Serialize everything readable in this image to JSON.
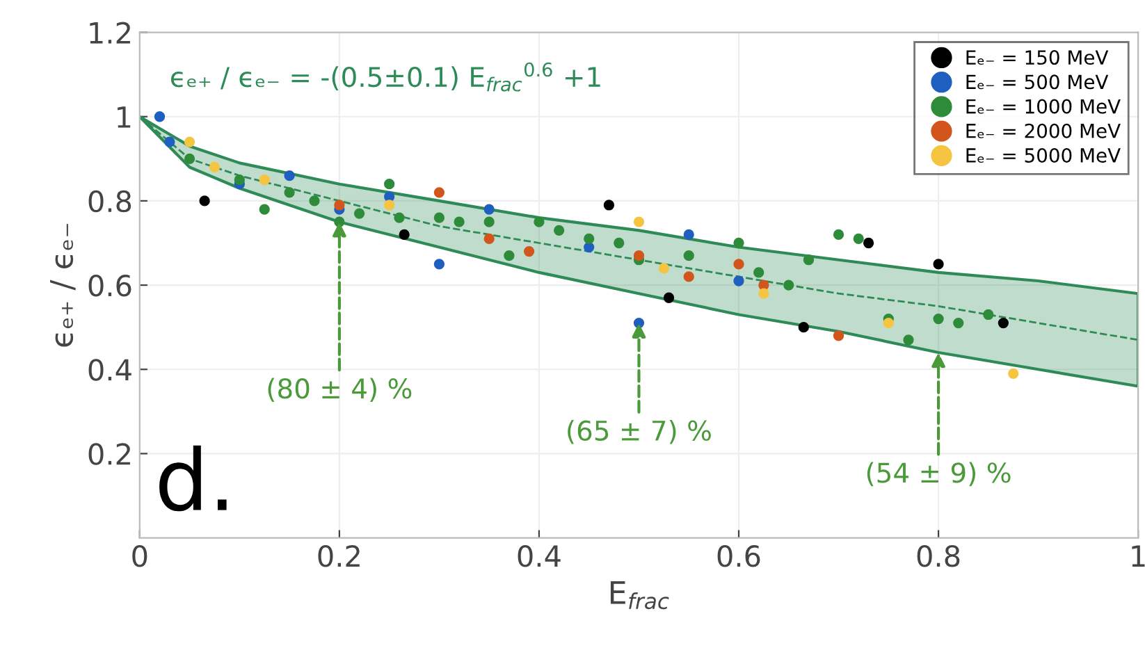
{
  "chart_data": {
    "type": "scatter",
    "xlabel": "E$_{frac}$",
    "ylabel": "ϵₑ₊ / ϵₑ₋",
    "xlim": [
      0,
      1
    ],
    "ylim": [
      0,
      1.2
    ],
    "xticks": [
      0,
      0.2,
      0.4,
      0.6,
      0.8,
      1
    ],
    "yticks": [
      {
        "value": 0.2,
        "label": "0.2"
      },
      0.4,
      0.6,
      0.8,
      1,
      1.2
    ],
    "grid": true,
    "legend": "top right",
    "series": [
      {
        "type": "line",
        "color": "#2e8b57",
        "line_style": "dashed",
        "x": [
          0,
          0.05,
          0.1,
          0.2,
          0.3,
          0.4,
          0.5,
          0.6,
          0.7,
          0.8,
          0.9,
          1
        ],
        "values": [
          1,
          0.9,
          0.86,
          0.8,
          0.74,
          0.7,
          0.66,
          0.62,
          0.58,
          0.55,
          0.51,
          0.47
        ],
        "upper": [
          1,
          0.93,
          0.89,
          0.84,
          0.8,
          0.76,
          0.73,
          0.69,
          0.66,
          0.63,
          0.61,
          0.58
        ],
        "lower": [
          1,
          0.88,
          0.83,
          0.75,
          0.69,
          0.63,
          0.58,
          0.53,
          0.49,
          0.44,
          0.4,
          0.36
        ]
      },
      {
        "name": "Eₑ₋ = 150 MeV",
        "marker": "circle",
        "color": "#000000",
        "x": [
          0.065,
          0.265,
          0.47,
          0.53,
          0.665,
          0.73,
          0.8,
          0.865
        ],
        "values": [
          0.8,
          0.72,
          0.79,
          0.57,
          0.5,
          0.7,
          0.65,
          0.51
        ]
      },
      {
        "name": "Eₑ₋ = 500 MeV",
        "marker": "circle",
        "color": "#1f5fbf",
        "x": [
          0.02,
          0.03,
          0.1,
          0.15,
          0.2,
          0.25,
          0.3,
          0.35,
          0.45,
          0.5,
          0.55,
          0.6
        ],
        "values": [
          1.0,
          0.94,
          0.84,
          0.86,
          0.78,
          0.81,
          0.65,
          0.78,
          0.69,
          0.51,
          0.72,
          0.61
        ]
      },
      {
        "name": "Eₑ₋ = 1000 MeV",
        "marker": "circle",
        "color": "#2e8b3a",
        "x": [
          0.05,
          0.1,
          0.125,
          0.15,
          0.175,
          0.2,
          0.22,
          0.25,
          0.26,
          0.3,
          0.32,
          0.35,
          0.37,
          0.4,
          0.42,
          0.45,
          0.48,
          0.5,
          0.55,
          0.6,
          0.62,
          0.65,
          0.67,
          0.7,
          0.72,
          0.75,
          0.77,
          0.8,
          0.82,
          0.85
        ],
        "values": [
          0.9,
          0.85,
          0.78,
          0.82,
          0.8,
          0.75,
          0.77,
          0.84,
          0.76,
          0.76,
          0.75,
          0.75,
          0.67,
          0.75,
          0.73,
          0.71,
          0.7,
          0.66,
          0.67,
          0.7,
          0.63,
          0.6,
          0.66,
          0.72,
          0.71,
          0.52,
          0.47,
          0.52,
          0.51,
          0.53
        ]
      },
      {
        "name": "Eₑ₋ = 2000 MeV",
        "marker": "circle",
        "color": "#d2561c",
        "x": [
          0.2,
          0.3,
          0.35,
          0.39,
          0.5,
          0.55,
          0.6,
          0.625,
          0.7
        ],
        "values": [
          0.79,
          0.82,
          0.71,
          0.68,
          0.67,
          0.62,
          0.65,
          0.6,
          0.48
        ]
      },
      {
        "name": "Eₑ₋ = 5000 MeV",
        "marker": "circle",
        "color": "#f5c542",
        "x": [
          0.05,
          0.075,
          0.125,
          0.25,
          0.5,
          0.525,
          0.625,
          0.75,
          0.875
        ],
        "values": [
          0.94,
          0.88,
          0.85,
          0.79,
          0.75,
          0.64,
          0.58,
          0.51,
          0.39
        ]
      }
    ],
    "annotations": [
      "ϵₑ₊ / ϵₑ₋ = -(0.5±0.1) E$_{frac}$$^{0.6}$ +1",
      "d.",
      {
        "text": "(80 ± 4) %",
        "x": 0.2,
        "y": 0.75
      },
      {
        "text": "(65 ± 7) %",
        "x": 0.5,
        "y": 0.51
      },
      {
        "text": "(54 ± 9) %",
        "x": 0.8,
        "y": 0.44
      }
    ]
  }
}
